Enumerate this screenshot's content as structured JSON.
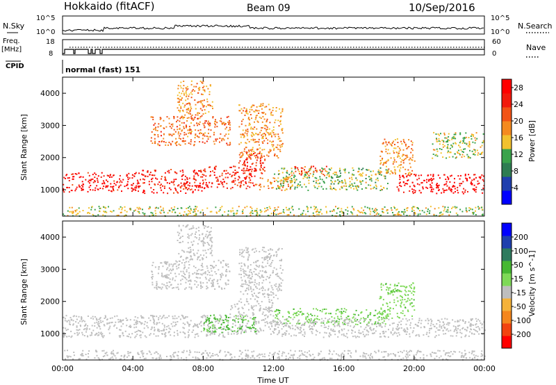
{
  "header": {
    "radar": "Hokkaido (fitACF)",
    "beam": "Beam 09",
    "date": "10/Sep/2016"
  },
  "panel_labels": {
    "nsky": "N.Sky",
    "nsearch": "N.Search",
    "freq_line1": "Freq.",
    "freq_line2": "[MHz]",
    "nave": "Nave",
    "cpid": "CPID",
    "cpid_value": "normal (fast) 151"
  },
  "small_axes": {
    "noise_left_ticks": [
      "10^5",
      "10^0"
    ],
    "noise_right_ticks": [
      "10^5",
      "10^0"
    ],
    "freq_left_ticks": [
      "18",
      "8"
    ],
    "nave_right_ticks": [
      "60",
      "0"
    ]
  },
  "colors": {
    "power_scale": [
      "#0000ff",
      "#1f3fae",
      "#2e7d52",
      "#3aa34b",
      "#f2c12e",
      "#f58a1f",
      "#f25316",
      "#f21a0c",
      "#ff0000"
    ],
    "velocity_scale": [
      "#ff0000",
      "#f2430f",
      "#f5861c",
      "#f5b23a",
      "#bebebe",
      "#7ed957",
      "#46b832",
      "#2e7b5e",
      "#1f3fae",
      "#0000ff"
    ],
    "ground_scatter": "#bebebe"
  },
  "chart_data": [
    {
      "type": "heatmap",
      "name": "Power",
      "xlabel": "",
      "ylabel": "Slant Range [km]",
      "x_unit": "hours UT",
      "xlim": [
        0,
        24
      ],
      "ylim": [
        180,
        4500
      ],
      "yticks": [
        "1000",
        "2000",
        "3000",
        "4000"
      ],
      "colorbar": {
        "label": "Power [dB]",
        "ticks": [
          "4",
          "8",
          "12",
          "16",
          "20",
          "24",
          "28"
        ],
        "range": [
          0,
          30
        ]
      },
      "regions": [
        {
          "t0": 0.0,
          "t1": 4.5,
          "r0": 950,
          "r1": 1550,
          "value": 27
        },
        {
          "t0": 4.5,
          "t1": 8.0,
          "r0": 900,
          "r1": 1650,
          "value": 26
        },
        {
          "t0": 8.0,
          "t1": 11.0,
          "r0": 1050,
          "r1": 1750,
          "value": 25
        },
        {
          "t0": 10.0,
          "t1": 11.5,
          "r0": 1500,
          "r1": 2200,
          "value": 24
        },
        {
          "t0": 11.0,
          "t1": 13.0,
          "r0": 1000,
          "r1": 1400,
          "value": 19
        },
        {
          "t0": 12.0,
          "t1": 18.5,
          "r0": 1000,
          "r1": 1700,
          "value": 13
        },
        {
          "t0": 13.0,
          "t1": 15.0,
          "r0": 1450,
          "r1": 1750,
          "value": 23
        },
        {
          "t0": 19.0,
          "t1": 24.0,
          "r0": 900,
          "r1": 1500,
          "value": 28
        },
        {
          "t0": 18.0,
          "t1": 20.0,
          "r0": 1500,
          "r1": 2600,
          "value": 18
        },
        {
          "t0": 5.0,
          "t1": 9.5,
          "r0": 2400,
          "r1": 3300,
          "value": 20
        },
        {
          "t0": 10.0,
          "t1": 12.5,
          "r0": 2000,
          "r1": 3700,
          "value": 18
        },
        {
          "t0": 6.5,
          "t1": 8.5,
          "r0": 3300,
          "r1": 4400,
          "value": 18
        },
        {
          "t0": 21.0,
          "t1": 24.0,
          "r0": 2000,
          "r1": 2800,
          "value": 14
        },
        {
          "t0": 0.0,
          "t1": 24.0,
          "r0": 200,
          "r1": 500,
          "value": 14
        }
      ]
    },
    {
      "type": "heatmap",
      "name": "Velocity",
      "xlabel": "Time UT",
      "ylabel": "Slant Range [km]",
      "x_unit": "hours UT",
      "xlim": [
        0,
        24
      ],
      "ylim": [
        180,
        4500
      ],
      "xticks": [
        "00:00",
        "04:00",
        "08:00",
        "12:00",
        "16:00",
        "20:00",
        "00:00"
      ],
      "yticks": [
        "1000",
        "2000",
        "3000",
        "4000"
      ],
      "colorbar": {
        "label": "Velocity [m s^-1]",
        "ticks": [
          "-200",
          "-100",
          "-50",
          "-15",
          "15",
          "50",
          "100",
          "200"
        ],
        "range": [
          -250,
          250
        ]
      },
      "regions": [
        {
          "t0": 0.0,
          "t1": 9.5,
          "r0": 900,
          "r1": 1600,
          "value": 0,
          "ground_scatter": true
        },
        {
          "t0": 9.5,
          "t1": 12.0,
          "r0": 1000,
          "r1": 2000,
          "value": 0,
          "ground_scatter": true
        },
        {
          "t0": 8.0,
          "t1": 11.0,
          "r0": 1050,
          "r1": 1600,
          "value": 60
        },
        {
          "t0": 12.0,
          "t1": 18.5,
          "r0": 1300,
          "r1": 1800,
          "value": 40
        },
        {
          "t0": 12.0,
          "t1": 24.0,
          "r0": 900,
          "r1": 1500,
          "value": 0,
          "ground_scatter": true
        },
        {
          "t0": 18.0,
          "t1": 20.0,
          "r0": 1500,
          "r1": 2600,
          "value": 35
        },
        {
          "t0": 5.0,
          "t1": 9.5,
          "r0": 2400,
          "r1": 3300,
          "value": -25
        },
        {
          "t0": 10.0,
          "t1": 12.5,
          "r0": 2000,
          "r1": 3700,
          "value": 0,
          "ground_scatter": true
        },
        {
          "t0": 6.5,
          "t1": 8.5,
          "r0": 3300,
          "r1": 4400,
          "value": -20
        },
        {
          "t0": 0.0,
          "t1": 24.0,
          "r0": 200,
          "r1": 500,
          "value": -30
        }
      ]
    }
  ]
}
